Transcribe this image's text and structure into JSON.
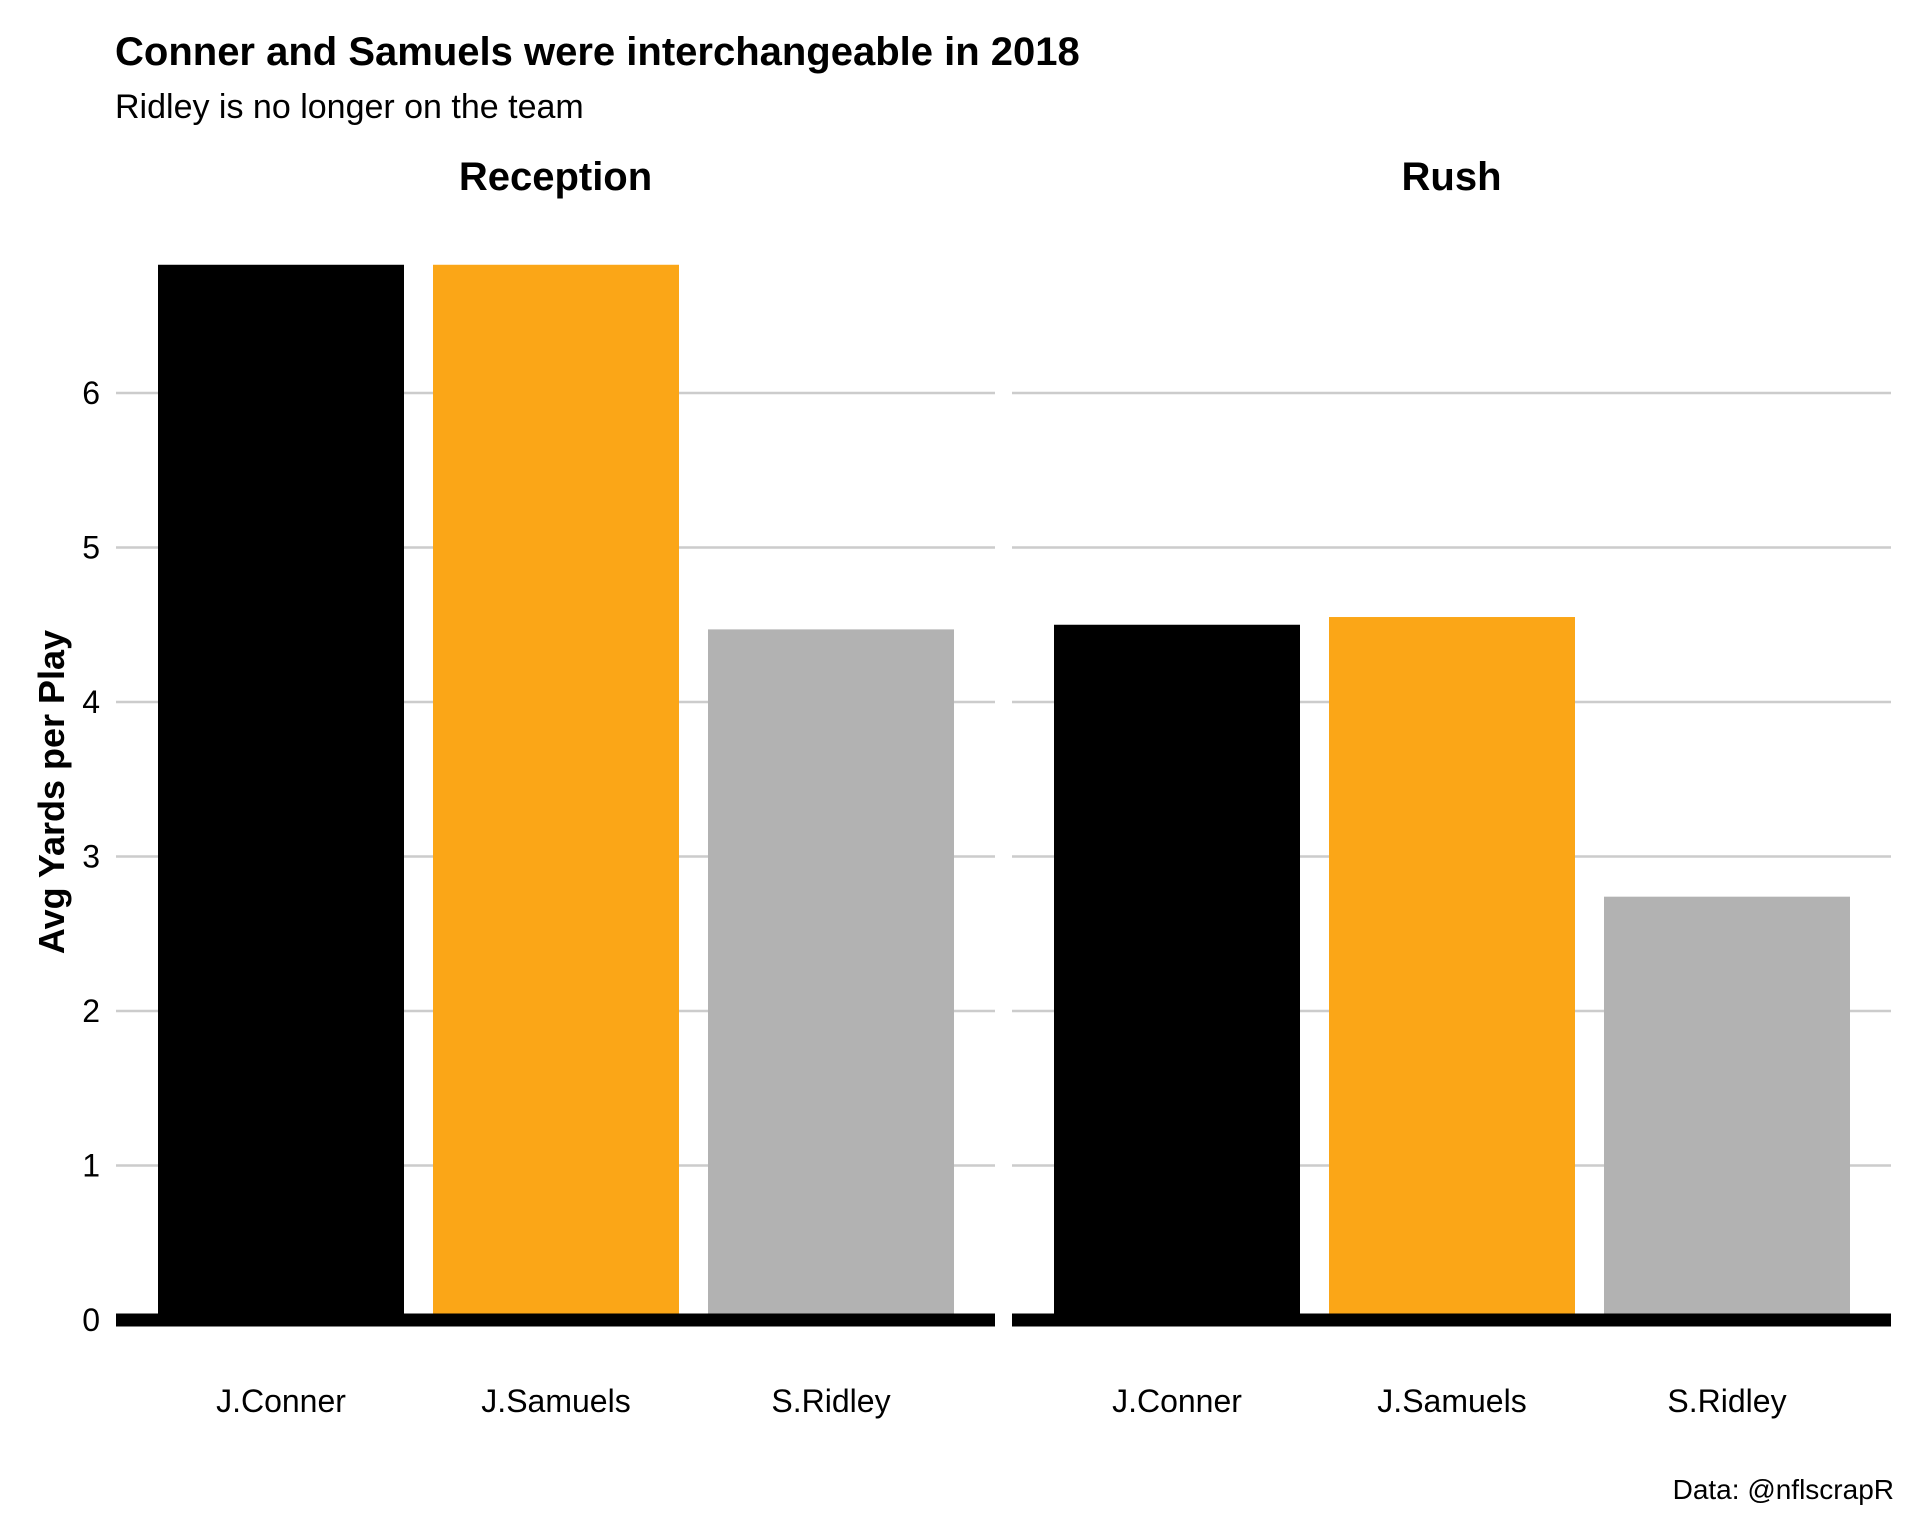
{
  "chart_data": {
    "type": "bar",
    "title": "Conner and Samuels were interchangeable in 2018",
    "subtitle": "Ridley is no longer on the team",
    "caption": "Data: @nflscrapR",
    "xlabel": "",
    "ylabel": "Avg Yards per Play",
    "ylim": [
      0,
      6.9
    ],
    "yticks": [
      0,
      1,
      2,
      3,
      4,
      5,
      6
    ],
    "grid": true,
    "legend": "none",
    "categories": [
      "J.Conner",
      "J.Samuels",
      "S.Ridley"
    ],
    "colors": [
      "#000000",
      "#fba617",
      "#b2b2b2"
    ],
    "panels": [
      {
        "name": "Reception",
        "values": [
          6.83,
          6.83,
          4.47
        ]
      },
      {
        "name": "Rush",
        "values": [
          4.5,
          4.55,
          2.74
        ]
      }
    ]
  }
}
